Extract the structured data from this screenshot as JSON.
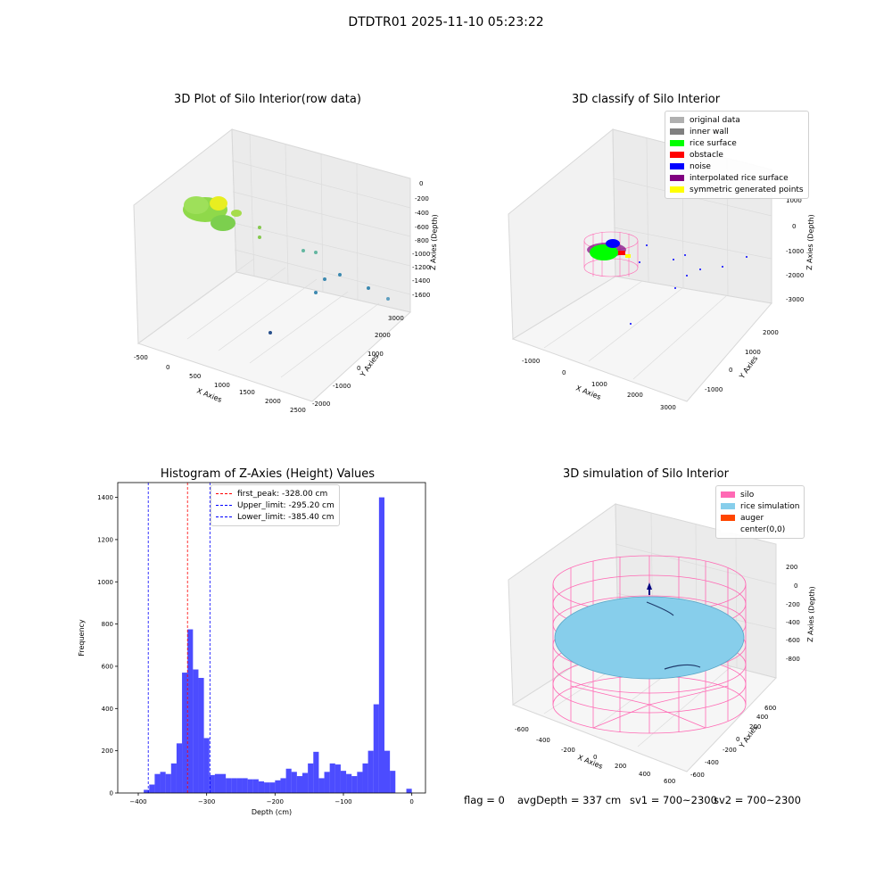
{
  "suptitle": "DTDTR01 2025-11-10 05:23:22",
  "panels": {
    "p1": {
      "title": "3D Plot of Silo Interior(row data)",
      "xlabel": "X Axies",
      "ylabel": "Y Axies",
      "zlabel": "Z Axies (Depth)",
      "xticks": [
        "-500",
        "0",
        "500",
        "1000",
        "1500",
        "2000",
        "2500"
      ],
      "yticks": [
        "-2000",
        "-1000",
        "0",
        "1000",
        "2000",
        "3000"
      ],
      "zticks": [
        "0",
        "-200",
        "-400",
        "-600",
        "-800",
        "-1000",
        "-1200",
        "-1400",
        "-1600"
      ]
    },
    "p2": {
      "title": "3D classify of Silo Interior",
      "xlabel": "X Axies",
      "ylabel": "Y Axies",
      "zlabel": "Z Axies (Depth)",
      "xticks": [
        "-1000",
        "0",
        "1000",
        "2000",
        "3000"
      ],
      "yticks": [
        "-1000",
        "0",
        "1000",
        "2000"
      ],
      "zticks": [
        "1000",
        "0",
        "-1000",
        "-2000",
        "-3000"
      ],
      "legend": [
        {
          "label": "original data",
          "color": "#b0b0b0"
        },
        {
          "label": "inner wall",
          "color": "#808080"
        },
        {
          "label": "rice surface",
          "color": "#00ff00"
        },
        {
          "label": "obstacle",
          "color": "#ff0000"
        },
        {
          "label": "noise",
          "color": "#0000ff"
        },
        {
          "label": "interpolated rice surface",
          "color": "#800080"
        },
        {
          "label": "symmetric generated points",
          "color": "#ffff00"
        }
      ]
    },
    "p4": {
      "title": "3D simulation of Silo Interior",
      "xlabel": "X Axies",
      "ylabel": "Y Axies",
      "zlabel": "Z Axies (Depth)",
      "xticks": [
        "-600",
        "-400",
        "-200",
        "0",
        "200",
        "400",
        "600"
      ],
      "yticks": [
        "-600",
        "-400",
        "-200",
        "0",
        "200",
        "400",
        "600"
      ],
      "zticks": [
        "200",
        "0",
        "-200",
        "-400",
        "-600",
        "-800"
      ],
      "legend": [
        {
          "label": "silo",
          "color": "#ff69b4"
        },
        {
          "label": "rice simulation",
          "color": "#87ceeb"
        },
        {
          "label": "auger",
          "color": "#ff4500"
        },
        {
          "label": "center(0,0)",
          "color": "#ffffff"
        }
      ]
    }
  },
  "chart_data": {
    "type": "bar",
    "title": "Histogram of Z-Axies (Height) Values",
    "xlabel": "Depth (cm)",
    "ylabel": "Frequency",
    "xlim": [
      -430,
      20
    ],
    "ylim": [
      0,
      1470
    ],
    "xticks": [
      -400,
      -300,
      -200,
      -100,
      0
    ],
    "yticks": [
      0,
      200,
      400,
      600,
      800,
      1000,
      1200,
      1400
    ],
    "bar_color": "#0000ff",
    "bin_width": 8,
    "bins": [
      {
        "x": -388,
        "v": 15
      },
      {
        "x": -380,
        "v": 40
      },
      {
        "x": -372,
        "v": 90
      },
      {
        "x": -364,
        "v": 100
      },
      {
        "x": -356,
        "v": 90
      },
      {
        "x": -348,
        "v": 140
      },
      {
        "x": -340,
        "v": 235
      },
      {
        "x": -332,
        "v": 570
      },
      {
        "x": -324,
        "v": 775
      },
      {
        "x": -316,
        "v": 585
      },
      {
        "x": -308,
        "v": 545
      },
      {
        "x": -300,
        "v": 260
      },
      {
        "x": -292,
        "v": 85
      },
      {
        "x": -284,
        "v": 90
      },
      {
        "x": -276,
        "v": 90
      },
      {
        "x": -268,
        "v": 70
      },
      {
        "x": -260,
        "v": 70
      },
      {
        "x": -252,
        "v": 70
      },
      {
        "x": -244,
        "v": 70
      },
      {
        "x": -236,
        "v": 65
      },
      {
        "x": -228,
        "v": 65
      },
      {
        "x": -220,
        "v": 55
      },
      {
        "x": -212,
        "v": 50
      },
      {
        "x": -204,
        "v": 50
      },
      {
        "x": -196,
        "v": 60
      },
      {
        "x": -188,
        "v": 70
      },
      {
        "x": -180,
        "v": 115
      },
      {
        "x": -172,
        "v": 100
      },
      {
        "x": -164,
        "v": 80
      },
      {
        "x": -156,
        "v": 95
      },
      {
        "x": -148,
        "v": 140
      },
      {
        "x": -140,
        "v": 195
      },
      {
        "x": -132,
        "v": 70
      },
      {
        "x": -124,
        "v": 100
      },
      {
        "x": -116,
        "v": 140
      },
      {
        "x": -108,
        "v": 135
      },
      {
        "x": -100,
        "v": 105
      },
      {
        "x": -92,
        "v": 90
      },
      {
        "x": -84,
        "v": 80
      },
      {
        "x": -76,
        "v": 100
      },
      {
        "x": -68,
        "v": 140
      },
      {
        "x": -60,
        "v": 200
      },
      {
        "x": -52,
        "v": 420
      },
      {
        "x": -44,
        "v": 1400
      },
      {
        "x": -36,
        "v": 200
      },
      {
        "x": -28,
        "v": 105
      },
      {
        "x": -20,
        "v": 0
      },
      {
        "x": -12,
        "v": 0
      },
      {
        "x": -4,
        "v": 20
      }
    ],
    "vlines": [
      {
        "label": "first_peak: -328.00 cm",
        "x": -328.0,
        "color": "#ff0000"
      },
      {
        "label": "Upper_limit: -295.20 cm",
        "x": -295.2,
        "color": "#0000ff"
      },
      {
        "label": "Lower_limit: -385.40 cm",
        "x": -385.4,
        "color": "#0000ff"
      }
    ],
    "legend_position": "top-center"
  },
  "status": {
    "flag": "flag = 0",
    "avg": "avgDepth = 337 cm",
    "sv1": "sv1 = 700~2300",
    "sv2": "sv2 = 700~2300"
  }
}
